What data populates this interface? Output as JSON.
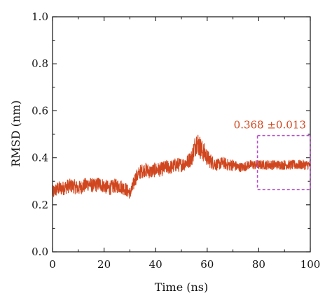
{
  "chart_data": {
    "type": "line",
    "title": "",
    "xlabel": "Time (ns)",
    "ylabel": "RMSD (nm)",
    "xlim": [
      0,
      100
    ],
    "ylim": [
      0.0,
      1.0
    ],
    "x_ticks": [
      "0",
      "20",
      "40",
      "60",
      "80",
      "100"
    ],
    "y_ticks": [
      "0.0",
      "0.2",
      "0.4",
      "0.6",
      "0.8",
      "1.0"
    ],
    "grid": false,
    "series": [
      {
        "color": "#d0461e",
        "x": [
          0,
          2,
          4,
          6,
          8,
          10,
          12,
          14,
          16,
          18,
          20,
          22,
          24,
          26,
          28,
          30,
          31,
          32,
          34,
          36,
          38,
          40,
          42,
          44,
          46,
          48,
          50,
          52,
          54,
          55,
          56,
          57,
          58,
          59,
          60,
          62,
          64,
          66,
          68,
          70,
          72,
          74,
          76,
          78,
          80,
          82,
          84,
          86,
          88,
          90,
          92,
          94,
          96,
          98,
          100
        ],
        "y": [
          0.25,
          0.27,
          0.27,
          0.28,
          0.28,
          0.27,
          0.28,
          0.29,
          0.28,
          0.29,
          0.28,
          0.27,
          0.28,
          0.28,
          0.27,
          0.25,
          0.27,
          0.31,
          0.34,
          0.35,
          0.34,
          0.35,
          0.35,
          0.36,
          0.36,
          0.37,
          0.37,
          0.38,
          0.4,
          0.44,
          0.47,
          0.45,
          0.43,
          0.42,
          0.4,
          0.38,
          0.37,
          0.38,
          0.37,
          0.37,
          0.36,
          0.36,
          0.37,
          0.37,
          0.37,
          0.37,
          0.37,
          0.37,
          0.37,
          0.37,
          0.37,
          0.37,
          0.37,
          0.37,
          0.37
        ],
        "noise": [
          0.03,
          0.03,
          0.03,
          0.03,
          0.03,
          0.03,
          0.03,
          0.03,
          0.03,
          0.03,
          0.03,
          0.03,
          0.03,
          0.03,
          0.03,
          0.025,
          0.03,
          0.03,
          0.03,
          0.03,
          0.03,
          0.03,
          0.03,
          0.03,
          0.03,
          0.03,
          0.03,
          0.03,
          0.035,
          0.045,
          0.05,
          0.05,
          0.045,
          0.04,
          0.035,
          0.03,
          0.025,
          0.025,
          0.025,
          0.025,
          0.02,
          0.02,
          0.02,
          0.02,
          0.02,
          0.02,
          0.02,
          0.02,
          0.02,
          0.02,
          0.02,
          0.02,
          0.02,
          0.02,
          0.02
        ]
      }
    ],
    "annotation": {
      "text": "0.368 ±0.013",
      "color": "#d0461e",
      "box_color": "#b54cc9",
      "box_x": [
        79.5,
        100
      ],
      "box_y": [
        0.265,
        0.495
      ]
    }
  }
}
